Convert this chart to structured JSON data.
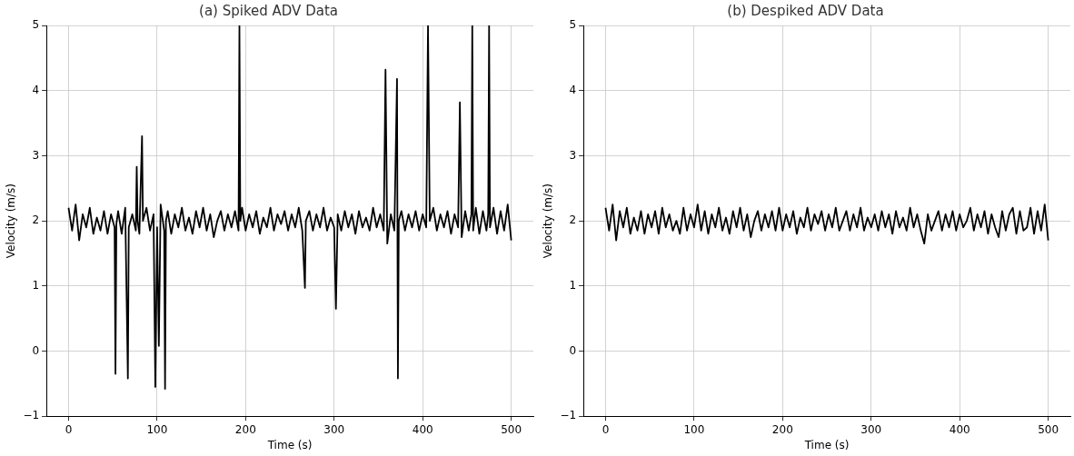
{
  "chart_data": [
    {
      "type": "line",
      "title": "(a) Spiked ADV Data",
      "xlabel": "Time (s)",
      "ylabel": "Velocity (m/s)",
      "xlim": [
        -25,
        525
      ],
      "ylim": [
        -1,
        5
      ],
      "xticks": [
        0,
        100,
        200,
        300,
        400,
        500
      ],
      "yticks": [
        -1,
        0,
        1,
        2,
        3,
        4,
        5
      ],
      "grid": true,
      "legend": false,
      "line_style": "solid",
      "marker": "none",
      "series": [
        {
          "color": "#000000",
          "x": [
            0,
            4,
            8,
            12,
            16,
            20,
            24,
            28,
            32,
            36,
            40,
            44,
            48,
            52,
            53,
            54,
            56,
            60,
            64,
            67,
            68,
            72,
            76,
            77,
            78,
            80,
            83,
            84,
            88,
            92,
            96,
            98,
            100,
            102,
            104,
            108,
            109,
            110,
            112,
            116,
            120,
            124,
            128,
            132,
            136,
            140,
            144,
            148,
            152,
            156,
            160,
            164,
            168,
            172,
            176,
            180,
            184,
            188,
            192,
            193,
            194,
            196,
            200,
            204,
            208,
            212,
            216,
            220,
            224,
            228,
            232,
            236,
            240,
            244,
            248,
            252,
            256,
            260,
            264,
            267,
            268,
            272,
            276,
            280,
            284,
            288,
            292,
            296,
            300,
            302,
            304,
            308,
            312,
            316,
            320,
            324,
            328,
            332,
            336,
            340,
            344,
            348,
            352,
            356,
            358,
            360,
            364,
            368,
            371,
            372,
            373,
            376,
            380,
            384,
            388,
            392,
            396,
            400,
            404,
            406,
            408,
            412,
            416,
            420,
            424,
            428,
            432,
            436,
            440,
            442,
            444,
            448,
            452,
            455,
            456,
            457,
            460,
            464,
            468,
            472,
            474,
            475,
            476,
            480,
            484,
            488,
            492,
            496,
            500
          ],
          "values": [
            2.2,
            1.85,
            2.25,
            1.7,
            2.1,
            1.9,
            2.2,
            1.8,
            2.05,
            1.85,
            2.15,
            1.8,
            2.1,
            1.9,
            -0.35,
            1.95,
            2.15,
            1.8,
            2.2,
            -0.42,
            1.9,
            2.1,
            1.85,
            2.83,
            2.0,
            1.8,
            3.3,
            2.0,
            2.2,
            1.85,
            2.1,
            -0.55,
            1.9,
            0.08,
            2.25,
            1.85,
            -0.58,
            2.0,
            2.15,
            1.8,
            2.1,
            1.9,
            2.2,
            1.85,
            2.05,
            1.8,
            2.15,
            1.9,
            2.2,
            1.85,
            2.1,
            1.75,
            2.0,
            2.15,
            1.85,
            2.1,
            1.9,
            2.15,
            1.85,
            5,
            2.0,
            2.2,
            1.85,
            2.1,
            1.9,
            2.15,
            1.8,
            2.05,
            1.9,
            2.2,
            1.85,
            2.1,
            1.95,
            2.15,
            1.85,
            2.1,
            1.9,
            2.2,
            1.85,
            0.97,
            2.0,
            2.15,
            1.85,
            2.1,
            1.9,
            2.2,
            1.85,
            2.05,
            1.9,
            0.65,
            2.1,
            1.85,
            2.15,
            1.9,
            2.1,
            1.8,
            2.15,
            1.9,
            2.05,
            1.85,
            2.2,
            1.9,
            2.1,
            1.85,
            4.32,
            1.65,
            2.1,
            1.85,
            4.18,
            -0.42,
            2.0,
            2.15,
            1.85,
            2.1,
            1.9,
            2.15,
            1.85,
            2.1,
            1.9,
            5,
            2.0,
            2.2,
            1.85,
            2.1,
            1.9,
            2.15,
            1.8,
            2.1,
            1.9,
            3.82,
            1.75,
            2.15,
            1.85,
            2.1,
            5,
            1.85,
            2.2,
            1.8,
            2.15,
            1.85,
            2.1,
            5,
            1.9,
            2.2,
            1.8,
            2.15,
            1.85,
            2.25,
            1.7
          ]
        }
      ]
    },
    {
      "type": "line",
      "title": "(b) Despiked ADV Data",
      "xlabel": "Time (s)",
      "ylabel": "Velocity (m/s)",
      "xlim": [
        -25,
        525
      ],
      "ylim": [
        -1,
        5
      ],
      "xticks": [
        0,
        100,
        200,
        300,
        400,
        500
      ],
      "yticks": [
        -1,
        0,
        1,
        2,
        3,
        4,
        5
      ],
      "grid": true,
      "legend": false,
      "line_style": "solid",
      "marker": "none",
      "series": [
        {
          "color": "#000000",
          "x": [
            0,
            4,
            8,
            12,
            16,
            20,
            24,
            28,
            32,
            36,
            40,
            44,
            48,
            52,
            56,
            60,
            64,
            68,
            72,
            76,
            80,
            84,
            88,
            92,
            96,
            100,
            104,
            108,
            112,
            116,
            120,
            124,
            128,
            132,
            136,
            140,
            144,
            148,
            152,
            156,
            160,
            164,
            168,
            172,
            176,
            180,
            184,
            188,
            192,
            196,
            200,
            204,
            208,
            212,
            216,
            220,
            224,
            228,
            232,
            236,
            240,
            244,
            248,
            252,
            256,
            260,
            264,
            268,
            272,
            276,
            280,
            284,
            288,
            292,
            296,
            300,
            304,
            308,
            312,
            316,
            320,
            324,
            328,
            332,
            336,
            340,
            344,
            348,
            352,
            356,
            360,
            364,
            368,
            372,
            376,
            380,
            384,
            388,
            392,
            396,
            400,
            404,
            408,
            412,
            416,
            420,
            424,
            428,
            432,
            436,
            440,
            444,
            448,
            452,
            456,
            460,
            464,
            468,
            472,
            476,
            480,
            484,
            488,
            492,
            496,
            500
          ],
          "values": [
            2.2,
            1.85,
            2.25,
            1.7,
            2.15,
            1.9,
            2.2,
            1.8,
            2.05,
            1.85,
            2.15,
            1.8,
            2.1,
            1.9,
            2.15,
            1.8,
            2.2,
            1.9,
            2.1,
            1.85,
            2.0,
            1.8,
            2.2,
            1.85,
            2.1,
            1.9,
            2.25,
            1.85,
            2.15,
            1.8,
            2.1,
            1.9,
            2.2,
            1.85,
            2.05,
            1.8,
            2.15,
            1.9,
            2.2,
            1.85,
            2.1,
            1.75,
            2.0,
            2.15,
            1.85,
            2.1,
            1.9,
            2.15,
            1.85,
            2.2,
            1.85,
            2.1,
            1.9,
            2.15,
            1.8,
            2.05,
            1.9,
            2.2,
            1.85,
            2.1,
            1.95,
            2.15,
            1.85,
            2.1,
            1.9,
            2.2,
            1.85,
            2.0,
            2.15,
            1.85,
            2.1,
            1.9,
            2.2,
            1.85,
            2.05,
            1.9,
            2.1,
            1.85,
            2.15,
            1.9,
            2.1,
            1.8,
            2.15,
            1.9,
            2.05,
            1.85,
            2.2,
            1.9,
            2.1,
            1.85,
            1.65,
            2.1,
            1.85,
            2.0,
            2.15,
            1.85,
            2.1,
            1.9,
            2.15,
            1.85,
            2.1,
            1.9,
            2.0,
            2.2,
            1.85,
            2.1,
            1.9,
            2.15,
            1.8,
            2.1,
            1.9,
            1.75,
            2.15,
            1.85,
            2.1,
            2.2,
            1.8,
            2.15,
            1.85,
            1.9,
            2.2,
            1.8,
            2.15,
            1.85,
            2.25,
            1.7
          ]
        }
      ]
    }
  ]
}
